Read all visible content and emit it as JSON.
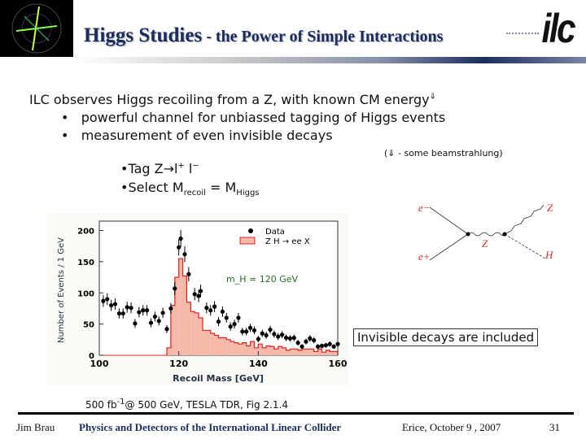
{
  "header": {
    "title_main": "Higgs Studies",
    "title_sub": " - the Power of Simple Interactions",
    "logo": "ilc"
  },
  "body": {
    "line1": "ILC observes Higgs recoiling from a Z, with known CM energy",
    "line1_mark": "⇓",
    "bullets": [
      "powerful channel for unbiassed tagging of Higgs events",
      "measurement of even invisible decays"
    ],
    "bullet_glyph": "•",
    "note": "(⇓ - some beamstrahlung)",
    "tag": {
      "prefix": "•Tag Z→l",
      "sup1": "+",
      "mid": " l",
      "sup2": "−"
    },
    "select": {
      "prefix": "•Select M",
      "sub1": "recoil",
      "mid": " = M",
      "sub2": "Higgs"
    },
    "invisible_box": "Invisible decays are included",
    "luminosity": {
      "a": "500  fb",
      "sup": "-1",
      "b": "@ 500 GeV, TESLA TDR, Fig 2.1.4"
    }
  },
  "diagram": {
    "labels": [
      "e−",
      "e+",
      "Z",
      "Z",
      "H"
    ]
  },
  "chart_data": {
    "type": "scatter",
    "xlabel": "Recoil Mass  [GeV]",
    "ylabel": "Number of Events / 1 GeV",
    "xlim": [
      100,
      160
    ],
    "ylim": [
      0,
      215
    ],
    "xticks": [
      100,
      120,
      140,
      160
    ],
    "yticks": [
      0,
      50,
      100,
      150,
      200
    ],
    "legend": [
      "Data",
      "Z H → ee X"
    ],
    "annotation": "m_H = 120 GeV",
    "data": {
      "x": [
        101,
        102,
        103,
        104,
        105,
        106,
        107,
        108,
        109,
        110,
        111,
        112,
        113,
        114,
        115,
        116,
        117,
        118,
        119,
        120,
        120.5,
        121.5,
        122.5,
        124,
        125,
        125.5,
        127,
        128,
        129,
        130,
        131,
        132,
        133,
        134,
        135,
        136,
        137,
        138,
        139,
        140,
        141,
        142,
        143,
        144,
        145,
        146,
        147,
        148,
        149,
        150,
        151,
        152,
        153,
        154,
        155,
        156,
        157,
        158,
        159,
        160
      ],
      "y": [
        87,
        90,
        80,
        82,
        67,
        67,
        77,
        76,
        51,
        69,
        72,
        72,
        52,
        62,
        55,
        68,
        42,
        75,
        107,
        173,
        187,
        162,
        130,
        98,
        95,
        103,
        76,
        72,
        78,
        54,
        70,
        60,
        46,
        50,
        60,
        38,
        38,
        44,
        40,
        26,
        35,
        32,
        41,
        34,
        30,
        33,
        28,
        27,
        28,
        20,
        14,
        22,
        27,
        24,
        14,
        15,
        16,
        18,
        14,
        18
      ]
    },
    "signal": {
      "bin_start": 117,
      "bin_width": 1,
      "values": [
        12,
        80,
        125,
        155,
        127,
        85,
        70,
        68,
        60,
        40,
        40,
        35,
        32,
        28,
        28,
        25,
        22,
        20,
        18,
        20,
        15,
        22,
        12,
        18,
        12,
        15,
        14,
        10,
        14,
        12,
        8,
        10,
        10,
        8,
        10,
        10,
        10,
        6,
        10,
        5,
        8,
        6,
        6
      ]
    }
  },
  "footer": {
    "author": "Jim Brau",
    "talk": "Physics and Detectors of the International Linear Collider",
    "venue": "Erice, October 9 , 2007",
    "page": "31"
  }
}
